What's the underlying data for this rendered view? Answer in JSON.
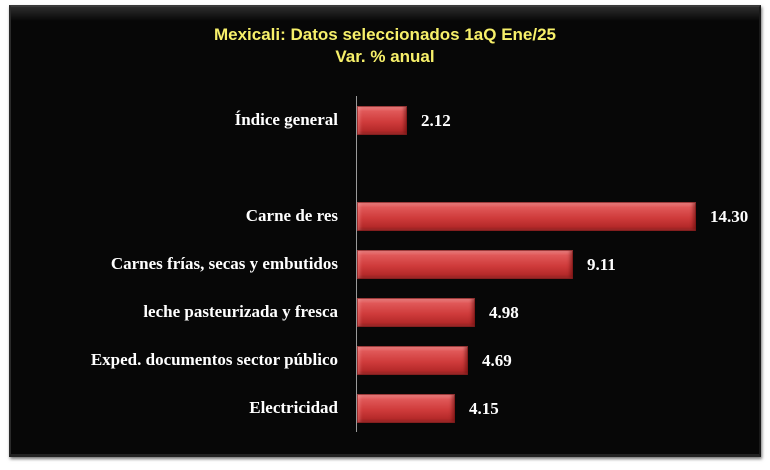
{
  "chart_data": {
    "type": "bar",
    "orientation": "horizontal",
    "title": "Mexicali: Datos seleccionados 1aQ Ene/25",
    "subtitle": "Var. % anual",
    "categories": [
      "Índice general",
      "",
      "Carne de res",
      "Carnes frías, secas y embutidos",
      "leche pasteurizada y fresca",
      "Exped. documentos sector público",
      "Electricidad"
    ],
    "values": [
      2.12,
      null,
      14.3,
      9.11,
      4.98,
      4.69,
      4.15
    ],
    "data_labels": [
      "2.12",
      "",
      "14.30",
      "9.11",
      "4.98",
      "4.69",
      "4.15"
    ],
    "xlabel": "",
    "ylabel": "",
    "xlim": [
      0,
      15
    ],
    "grid": false,
    "legend": null,
    "colors": {
      "bar": "#d84444",
      "background": "#070707",
      "title": "#f7f06a",
      "text": "#ffffff"
    }
  },
  "title": {
    "line1": "Mexicali: Datos seleccionados 1aQ Ene/25",
    "line2": "Var. % anual"
  },
  "rows": [
    {
      "label": "Índice general",
      "value": "2.12"
    },
    {
      "label": "Carne de res",
      "value": "14.30"
    },
    {
      "label": "Carnes frías, secas y embutidos",
      "value": "9.11"
    },
    {
      "label": "leche pasteurizada y fresca",
      "value": "4.98"
    },
    {
      "label": "Exped. documentos sector público",
      "value": "4.69"
    },
    {
      "label": "Electricidad",
      "value": "4.15"
    }
  ]
}
